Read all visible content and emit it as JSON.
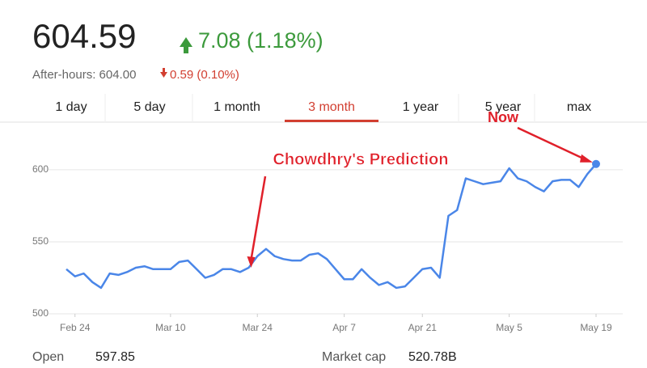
{
  "header": {
    "price": "604.59",
    "change": "7.08 (1.18%)",
    "after_hours_label": "After-hours: 604.00",
    "after_hours_change": "0.59 (0.10%)"
  },
  "tabs": [
    "1 day",
    "5 day",
    "1 month",
    "3 month",
    "1 year",
    "5 year",
    "max"
  ],
  "active_tab": 3,
  "chart_data": {
    "type": "line",
    "categories": [
      null,
      "Feb 24",
      null,
      null,
      null,
      null,
      null,
      null,
      null,
      null,
      null,
      null,
      "Mar 10",
      null,
      null,
      null,
      null,
      null,
      null,
      null,
      null,
      null,
      "Mar 24",
      null,
      null,
      null,
      null,
      null,
      null,
      null,
      null,
      null,
      "Apr 7",
      null,
      null,
      null,
      null,
      null,
      null,
      null,
      null,
      "Apr 21",
      null,
      null,
      null,
      null,
      null,
      null,
      null,
      null,
      null,
      "May 5",
      null,
      null,
      null,
      null,
      null,
      null,
      null,
      null,
      null,
      "May 19"
    ],
    "series": [
      {
        "color": "#4a86e8",
        "values": [
          531,
          526,
          528,
          522,
          518,
          528,
          527,
          529,
          532,
          533,
          531,
          531,
          531,
          536,
          537,
          531,
          525,
          527,
          531,
          531,
          529,
          532,
          540,
          545,
          540,
          538,
          537,
          537,
          541,
          542,
          538,
          531,
          524,
          524,
          531,
          525,
          520,
          522,
          518,
          519,
          525,
          531,
          532,
          525,
          568,
          572,
          594,
          592,
          590,
          591,
          592,
          601,
          594,
          592,
          588,
          585,
          592,
          593,
          593,
          588,
          597,
          604
        ]
      }
    ],
    "ylim": [
      500,
      628
    ],
    "yticks": [
      500,
      550,
      600
    ],
    "grid": true,
    "annotations": [
      {
        "text": "Chowdhry's Prediction",
        "index": 21
      },
      {
        "text": "Now",
        "index": 61
      }
    ]
  },
  "stats": [
    {
      "label": "Open",
      "value": "597.85"
    },
    {
      "label": "Market cap",
      "value": "520.78B"
    }
  ]
}
